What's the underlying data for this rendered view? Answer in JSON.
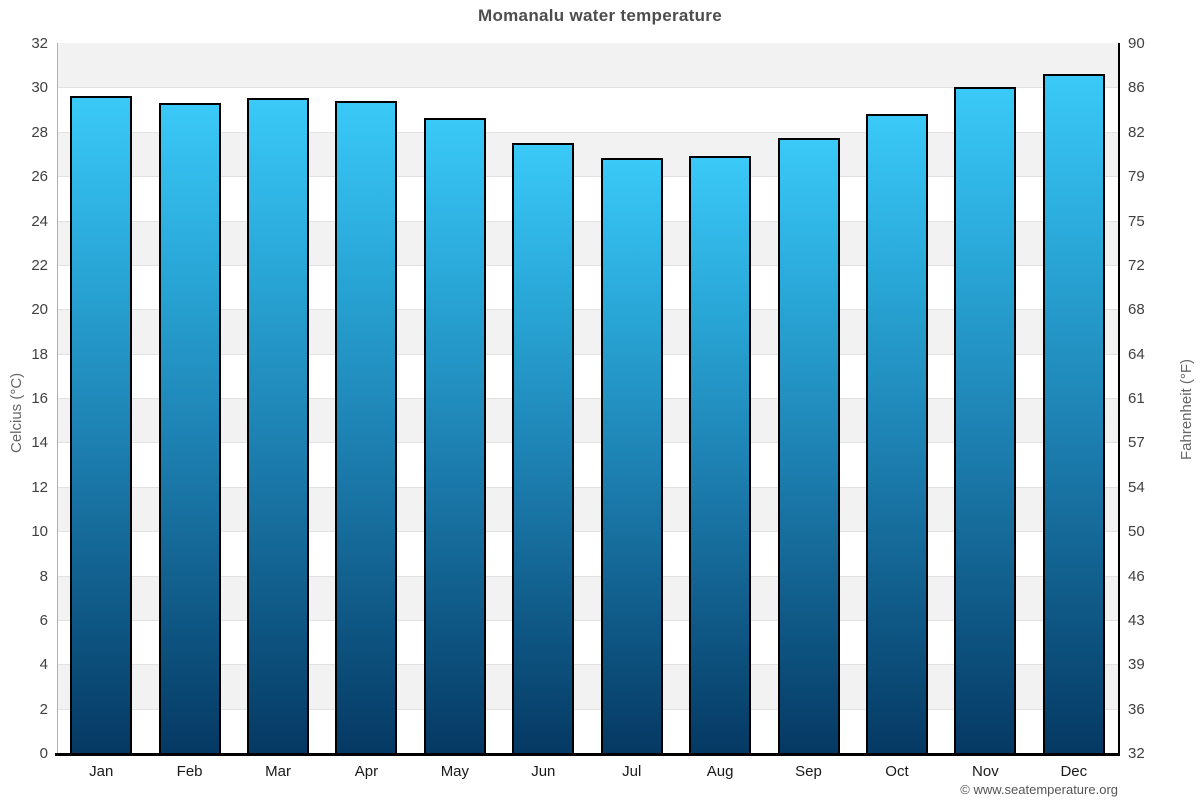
{
  "chart_data": {
    "type": "bar",
    "title": "Momanalu water temperature",
    "series": [
      {
        "name": "Water temperature (°C)",
        "values": [
          29.6,
          29.3,
          29.5,
          29.4,
          28.6,
          27.5,
          26.8,
          26.9,
          27.7,
          28.8,
          30.0,
          30.6
        ]
      }
    ],
    "categories": [
      "Jan",
      "Feb",
      "Mar",
      "Apr",
      "May",
      "Jun",
      "Jul",
      "Aug",
      "Sep",
      "Oct",
      "Nov",
      "Dec"
    ],
    "ylabel_left": "Celcius (°C)",
    "ylabel_right": "Fahrenheit (°F)",
    "ylim": [
      0,
      32
    ],
    "celsius_ticks": [
      32,
      30,
      28,
      26,
      24,
      22,
      20,
      18,
      16,
      14,
      12,
      10,
      8,
      6,
      4,
      2,
      0
    ],
    "fahrenheit_ticks": [
      90,
      86,
      82,
      79,
      75,
      72,
      68,
      64,
      61,
      57,
      54,
      50,
      46,
      43,
      39,
      36,
      32
    ],
    "grid": "alternating-bands",
    "legend": "none",
    "colors": {
      "bar_gradient_top": "#3ac9f8",
      "bar_gradient_middle": "#1e84b5",
      "bar_gradient_bottom": "#053963",
      "bar_border": "#000000",
      "band_gray": "#f2f2f2",
      "band_white": "#ffffff",
      "gridline": "#e2e2e2",
      "axis_left_line": "#b0b0b0",
      "axis_right_line": "#000000",
      "axis_bottom_line": "#000000",
      "title_text": "#4d4d4d",
      "tick_text": "#404040",
      "axis_title_text": "#666666"
    }
  },
  "footer": {
    "copyright": "© www.seatemperature.org"
  }
}
